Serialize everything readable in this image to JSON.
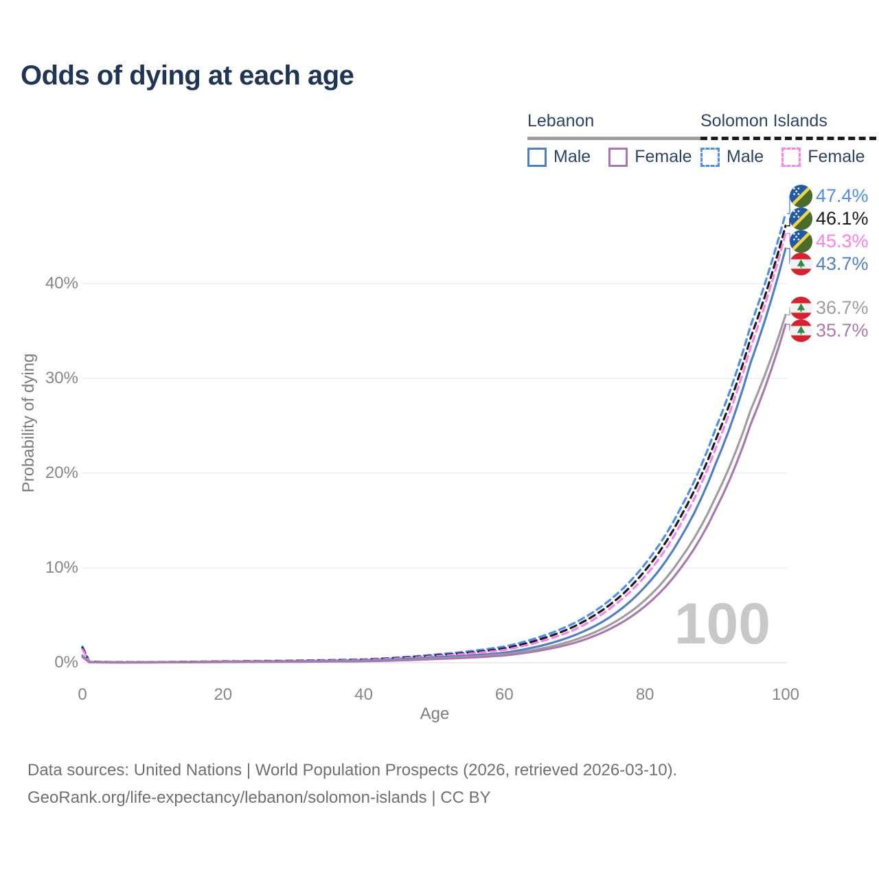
{
  "header": {
    "title": "Odds of dying at each age"
  },
  "legend": {
    "groups": [
      {
        "label": "Lebanon",
        "underline_style": "solid",
        "underline_color": "#9e9e9e",
        "items": [
          {
            "label": "Male",
            "color": "#4f7fc4",
            "dash": false
          },
          {
            "label": "Female",
            "color": "#ab77af",
            "dash": false
          }
        ]
      },
      {
        "label": "Solomon Islands",
        "underline_style": "dashed",
        "underline_color": "#1a1a1a",
        "items": [
          {
            "label": "Male",
            "color": "#4d8df2",
            "dash": true
          },
          {
            "label": "Female",
            "color": "#fb80e8",
            "dash": true
          }
        ]
      }
    ]
  },
  "chart_data": {
    "type": "line",
    "title": "Odds of dying at each age",
    "xlabel": "Age",
    "ylabel": "Probability of dying",
    "xlim": [
      0,
      100
    ],
    "ylim": [
      0,
      48
    ],
    "grid": "horizontal-only",
    "watermark": "100",
    "xticks": [
      0,
      20,
      40,
      60,
      80,
      100
    ],
    "yticks": [
      {
        "v": 0,
        "label": "0%"
      },
      {
        "v": 10,
        "label": "10%"
      },
      {
        "v": 20,
        "label": "20%"
      },
      {
        "v": 30,
        "label": "30%"
      },
      {
        "v": 40,
        "label": "40%"
      }
    ],
    "x_anchor_ages": [
      0,
      1,
      5,
      10,
      20,
      30,
      40,
      45,
      50,
      55,
      60,
      65,
      70,
      75,
      80,
      85,
      90,
      95,
      100
    ],
    "series": [
      {
        "id": "solomon-islands-male",
        "country": "Solomon Islands",
        "sex": "Male",
        "flag": "solomon-islands",
        "color": "#4d8df2",
        "dashed": true,
        "end_label": "47.4%",
        "values": [
          1.7,
          0.12,
          0.06,
          0.07,
          0.15,
          0.22,
          0.35,
          0.55,
          0.85,
          1.2,
          1.7,
          2.7,
          4.2,
          6.6,
          10.4,
          16.2,
          24.6,
          35.5,
          47.4
        ]
      },
      {
        "id": "solomon-islands-both",
        "country": "Solomon Islands",
        "sex": "Both sexes",
        "flag": "solomon-islands",
        "color": "#1a1a1a",
        "dashed": true,
        "end_label": "46.1%",
        "values": [
          1.55,
          0.11,
          0.055,
          0.06,
          0.13,
          0.19,
          0.31,
          0.5,
          0.75,
          1.05,
          1.5,
          2.45,
          3.85,
          6.1,
          9.7,
          15.3,
          23.4,
          34.2,
          46.1
        ]
      },
      {
        "id": "solomon-islands-female",
        "country": "Solomon Islands",
        "sex": "Female",
        "flag": "solomon-islands",
        "color": "#fb80e8",
        "dashed": true,
        "end_label": "45.3%",
        "values": [
          1.4,
          0.1,
          0.05,
          0.055,
          0.12,
          0.17,
          0.28,
          0.45,
          0.68,
          0.95,
          1.35,
          2.2,
          3.5,
          5.7,
          9.1,
          14.5,
          22.5,
          33.2,
          45.3
        ]
      },
      {
        "id": "lebanon-male",
        "country": "Lebanon",
        "sex": "Male",
        "flag": "lebanon",
        "color": "#4f7fc4",
        "dashed": false,
        "end_label": "43.7%",
        "values": [
          0.75,
          0.06,
          0.03,
          0.04,
          0.1,
          0.14,
          0.22,
          0.35,
          0.55,
          0.75,
          1.05,
          1.75,
          2.9,
          4.8,
          8.0,
          13.1,
          20.9,
          31.6,
          43.7
        ]
      },
      {
        "id": "lebanon-both",
        "country": "Lebanon",
        "sex": "Both sexes",
        "flag": "lebanon",
        "color": "#9e9e9e",
        "dashed": false,
        "end_label": "36.7%",
        "values": [
          0.68,
          0.05,
          0.025,
          0.035,
          0.08,
          0.12,
          0.18,
          0.28,
          0.45,
          0.62,
          0.88,
          1.45,
          2.4,
          4.0,
          6.6,
          10.9,
          17.4,
          26.6,
          36.7
        ]
      },
      {
        "id": "lebanon-female",
        "country": "Lebanon",
        "sex": "Female",
        "flag": "lebanon",
        "color": "#ab77af",
        "dashed": false,
        "end_label": "35.7%",
        "values": [
          0.6,
          0.045,
          0.02,
          0.03,
          0.07,
          0.1,
          0.15,
          0.24,
          0.38,
          0.53,
          0.76,
          1.27,
          2.1,
          3.55,
          5.95,
          9.9,
          16.1,
          25.1,
          35.7
        ]
      }
    ]
  },
  "footer": {
    "line1": "Data sources: United Nations | World Population Prospects (2026, retrieved 2026-03-10).",
    "line2": "GeoRank.org/life-expectancy/lebanon/solomon-islands | CC BY"
  }
}
